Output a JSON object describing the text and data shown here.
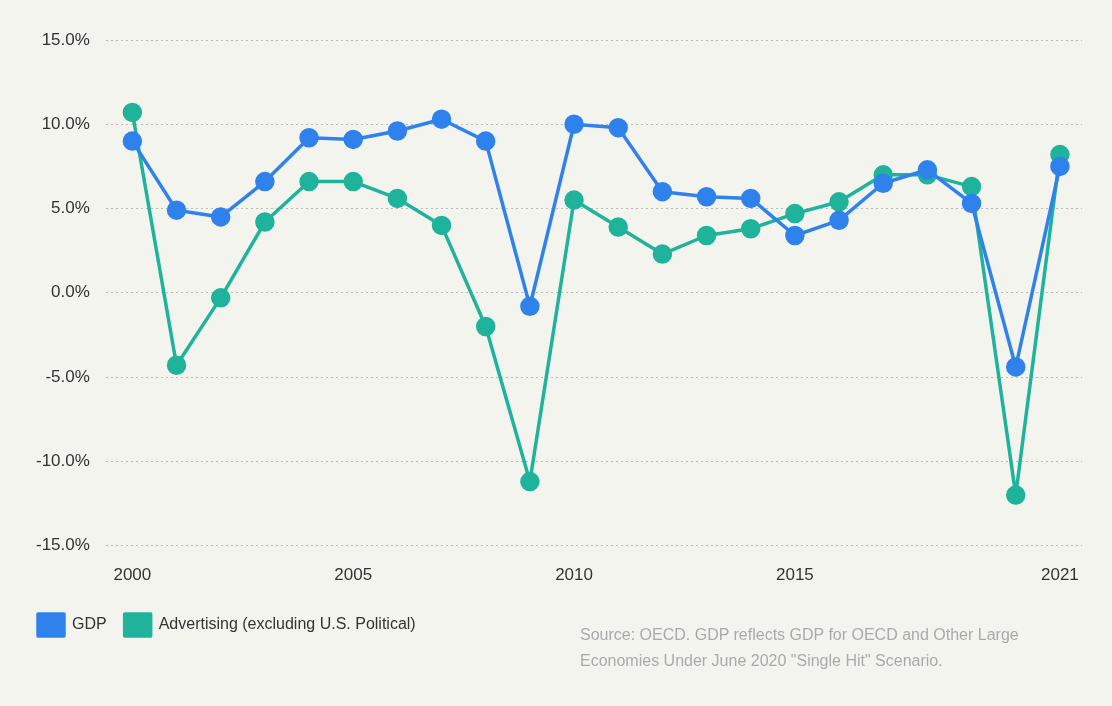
{
  "chart_data": {
    "type": "line",
    "x": [
      2000,
      2001,
      2002,
      2003,
      2004,
      2005,
      2006,
      2007,
      2008,
      2009,
      2010,
      2011,
      2012,
      2013,
      2014,
      2015,
      2016,
      2017,
      2018,
      2019,
      2020,
      2021
    ],
    "series": [
      {
        "name": "Advertising (excluding U.S. Political)",
        "color": "#1fb39b",
        "values": [
          10.7,
          -4.3,
          -0.3,
          4.2,
          6.6,
          6.6,
          5.6,
          4.0,
          -2.0,
          -11.2,
          5.5,
          3.9,
          2.3,
          3.4,
          3.8,
          4.7,
          5.4,
          7.0,
          7.0,
          6.3,
          -12.0,
          8.2
        ]
      },
      {
        "name": "GDP",
        "color": "#2f82ec",
        "values": [
          9.0,
          4.9,
          4.5,
          6.6,
          9.2,
          9.1,
          9.6,
          10.3,
          9.0,
          -0.8,
          10.0,
          9.8,
          6.0,
          5.7,
          5.6,
          3.4,
          4.3,
          6.5,
          7.3,
          5.3,
          -4.4,
          7.5
        ]
      }
    ],
    "xlim": [
      1999.4,
      2021.5
    ],
    "xticks": [
      2000,
      2005,
      2010,
      2015,
      2021
    ],
    "ylim": [
      -15,
      15
    ],
    "yticks": [
      {
        "value": -15,
        "label": "-15.0%"
      },
      {
        "value": -10,
        "label": "-10.0%"
      },
      {
        "value": -5,
        "label": "-5.0%"
      },
      {
        "value": 0,
        "label": "0.0%"
      },
      {
        "value": 5,
        "label": "5.0%"
      },
      {
        "value": 10,
        "label": "10.0%"
      },
      {
        "value": 15,
        "label": "15.0%"
      }
    ],
    "grid": "y",
    "legend": "bottom left",
    "marker": "circle",
    "line_style": "solid",
    "annotations": [
      "Source: OECD. GDP reflects GDP for OECD and Other Large Economies Under June 2020 \"Single Hit\" Scenario."
    ]
  }
}
